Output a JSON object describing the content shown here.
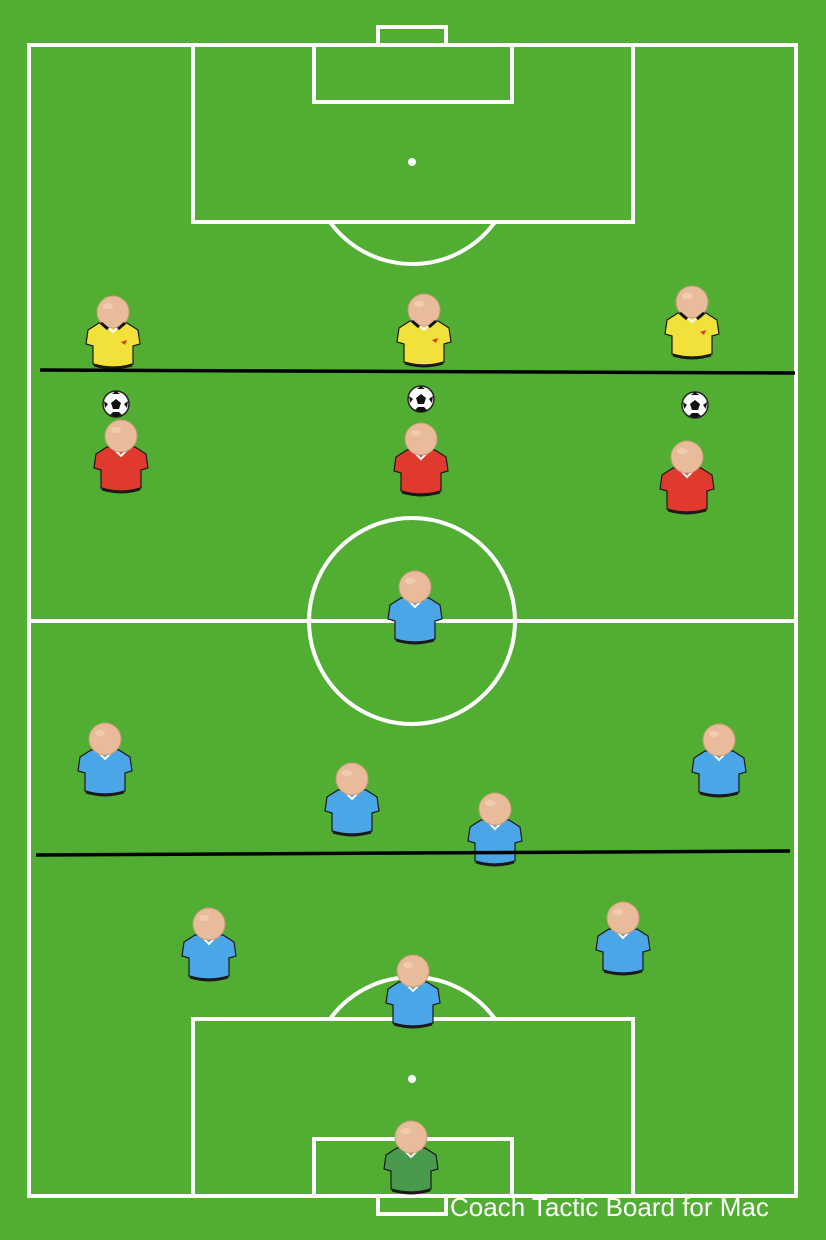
{
  "app": {
    "watermark": "Coach Tactic Board for Mac"
  },
  "colors": {
    "grass": "#52ae33",
    "line": "#ffffff",
    "kit_yellow": "#f2e13a",
    "kit_red": "#e03a2e",
    "kit_blue": "#4aa6e6",
    "kit_green": "#4a9a4e",
    "skin": "#e8bc9a",
    "marker_line": "#000000"
  },
  "board": {
    "players": [
      {
        "team": "yellow",
        "name": "opponent-left"
      },
      {
        "team": "yellow",
        "name": "opponent-center"
      },
      {
        "team": "yellow",
        "name": "opponent-right"
      },
      {
        "team": "red",
        "name": "red-left"
      },
      {
        "team": "red",
        "name": "red-center"
      },
      {
        "team": "red",
        "name": "red-right"
      },
      {
        "team": "blue",
        "name": "blue-center-circle"
      },
      {
        "team": "blue",
        "name": "blue-left-mid"
      },
      {
        "team": "blue",
        "name": "blue-center-left"
      },
      {
        "team": "blue",
        "name": "blue-center-right"
      },
      {
        "team": "blue",
        "name": "blue-right-mid"
      },
      {
        "team": "blue",
        "name": "blue-left-back"
      },
      {
        "team": "blue",
        "name": "blue-right-back"
      },
      {
        "team": "blue",
        "name": "blue-sweeper"
      },
      {
        "team": "green",
        "name": "goalkeeper"
      }
    ],
    "balls": [
      "ball-left",
      "ball-center",
      "ball-right"
    ],
    "drawn_lines": [
      "offside-line-top",
      "defensive-line-bottom"
    ]
  }
}
